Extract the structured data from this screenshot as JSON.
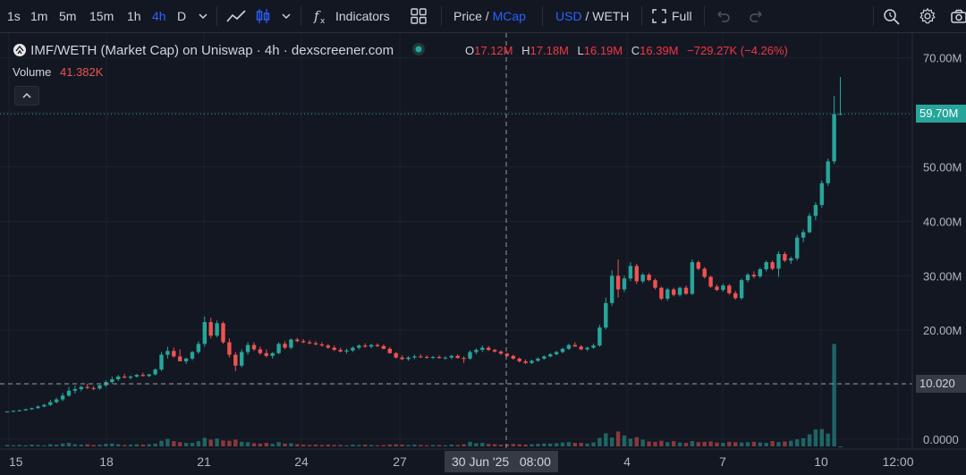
{
  "toolbar": {
    "intervals": [
      "1s",
      "1m",
      "5m",
      "15m",
      "1h",
      "4h",
      "D"
    ],
    "active_interval": "4h",
    "indicators_label": "Indicators",
    "price_label": "Price",
    "slash": " / ",
    "mcap_label": "MCap",
    "usd_label": "USD",
    "weth_label": "WETH",
    "full_label": "Full"
  },
  "legend": {
    "title": "IMF/WETH (Market Cap) on Uniswap · 4h · dexscreener.com",
    "o_key": "O",
    "o_val": "17.12M",
    "h_key": "H",
    "h_val": "17.18M",
    "l_key": "L",
    "l_val": "16.19M",
    "c_key": "C",
    "c_val": "16.39M",
    "change": "−729.27K (−4.26%)",
    "volume_label": "Volume",
    "volume_val": "41.382K"
  },
  "axis": {
    "y_ticks": [
      "70.00M",
      "60.00M",
      "50.00M",
      "40.00M",
      "30.00M",
      "20.00M",
      "10.00M",
      "0.0000"
    ],
    "x_ticks": [
      "15",
      "18",
      "21",
      "24",
      "27",
      "4",
      "7",
      "10",
      "12:00"
    ],
    "price_tag": "59.70M",
    "crosshair_y_tag": "10.020",
    "crosshair_x_tag": "30 Jun '25   08:00"
  },
  "colors": {
    "up": "#26a69a",
    "down": "#ef5350",
    "accent": "#2962ff",
    "background": "#131722"
  },
  "chart_data": {
    "type": "candlestick",
    "ylim": [
      0,
      70000000
    ],
    "candles": [
      [
        5,
        5.1,
        4.9,
        5.1
      ],
      [
        5.1,
        5.3,
        5,
        5.2
      ],
      [
        5.2,
        5.4,
        5.1,
        5.3
      ],
      [
        5.3,
        5.6,
        5.2,
        5.5
      ],
      [
        5.5,
        5.8,
        5.4,
        5.7
      ],
      [
        5.7,
        6.2,
        5.6,
        6
      ],
      [
        6,
        6.5,
        5.9,
        6.3
      ],
      [
        6.3,
        7.2,
        6.1,
        6.8
      ],
      [
        6.8,
        7.6,
        6.6,
        7.3
      ],
      [
        7.3,
        8.5,
        7,
        8
      ],
      [
        8,
        9.6,
        7.8,
        8.9
      ],
      [
        8.9,
        9.8,
        8.4,
        9.2
      ],
      [
        9.2,
        9.8,
        8.8,
        9.6
      ],
      [
        9.6,
        10.2,
        9.2,
        9.4
      ],
      [
        9.4,
        9.7,
        9,
        9.3
      ],
      [
        9.3,
        10,
        9.1,
        9.9
      ],
      [
        9.9,
        10.8,
        9.6,
        10.5
      ],
      [
        10.5,
        11.5,
        10.2,
        11
      ],
      [
        11,
        11.8,
        10.7,
        11.5
      ],
      [
        11.5,
        12,
        11.2,
        11.3
      ],
      [
        11.3,
        11.7,
        11,
        11.5
      ],
      [
        11.5,
        12,
        11.3,
        11.8
      ],
      [
        11.8,
        12.2,
        11.5,
        11.6
      ],
      [
        11.6,
        12,
        11.4,
        11.9
      ],
      [
        11.9,
        13,
        11.7,
        12.8
      ],
      [
        12.8,
        16,
        12.5,
        15.5
      ],
      [
        15.5,
        17,
        14.8,
        16.2
      ],
      [
        16.2,
        16.8,
        15,
        15.2
      ],
      [
        15.2,
        16.5,
        14.5,
        14.3
      ],
      [
        14.3,
        15,
        13.8,
        14.8
      ],
      [
        14.8,
        16.2,
        14.5,
        16
      ],
      [
        16,
        18,
        15.7,
        17.5
      ],
      [
        17.5,
        22.5,
        17,
        21.5
      ],
      [
        21.5,
        22.3,
        18.5,
        19
      ],
      [
        19,
        21.8,
        18.7,
        21.3
      ],
      [
        21.3,
        21.6,
        17.5,
        17.8
      ],
      [
        17.8,
        18.5,
        15,
        15.5
      ],
      [
        15.5,
        16,
        12.5,
        13.5
      ],
      [
        13.5,
        16.5,
        13.2,
        16
      ],
      [
        16,
        17.8,
        15.5,
        17.3
      ],
      [
        17.3,
        17.8,
        16.2,
        16.5
      ],
      [
        16.5,
        17,
        15.5,
        15.8
      ],
      [
        15.8,
        16.5,
        15,
        15.3
      ],
      [
        15.3,
        16,
        14.8,
        15.8
      ],
      [
        15.8,
        17.8,
        15.6,
        17.5
      ],
      [
        17.5,
        18,
        16.5,
        16.8
      ],
      [
        16.8,
        18.5,
        16.5,
        18.3
      ],
      [
        18.3,
        18.6,
        17.8,
        18
      ],
      [
        18,
        18.4,
        17.6,
        17.8
      ],
      [
        17.8,
        18.2,
        17.4,
        17.6
      ],
      [
        17.6,
        18,
        17.2,
        17.4
      ],
      [
        17.4,
        17.8,
        17,
        17.2
      ],
      [
        17.2,
        17.5,
        16.6,
        16.8
      ],
      [
        16.8,
        17.2,
        16.2,
        16.4
      ],
      [
        16.4,
        16.8,
        15.9,
        16.1
      ],
      [
        16.1,
        16.6,
        15.7,
        16.3
      ],
      [
        16.3,
        17,
        16,
        16.8
      ],
      [
        16.8,
        17.4,
        16.5,
        17.2
      ],
      [
        17.2,
        17.6,
        16.8,
        17
      ],
      [
        17,
        17.5,
        16.7,
        17.3
      ],
      [
        17.3,
        17.6,
        16.9,
        17.1
      ],
      [
        17.1,
        17.4,
        16.5,
        16.6
      ],
      [
        16.6,
        16.9,
        15.7,
        15.8
      ],
      [
        15.8,
        16,
        14.8,
        15
      ],
      [
        15,
        15.4,
        14.5,
        14.7
      ],
      [
        14.7,
        15.2,
        14.4,
        15
      ],
      [
        15,
        15.5,
        14.7,
        15.2
      ],
      [
        15.2,
        15.6,
        14.9,
        15.1
      ],
      [
        15.1,
        15.4,
        14.8,
        15
      ],
      [
        15,
        15.3,
        14.7,
        15.1
      ],
      [
        15.1,
        15.4,
        14.8,
        14.9
      ],
      [
        14.9,
        15.2,
        14.6,
        15
      ],
      [
        15,
        15.5,
        14.7,
        15.3
      ],
      [
        15.3,
        15.6,
        14.8,
        14.9
      ],
      [
        14.9,
        15.2,
        14,
        14.8
      ],
      [
        14.8,
        16.3,
        14.6,
        16
      ],
      [
        16,
        16.7,
        15.6,
        16.4
      ],
      [
        16.4,
        17.2,
        16,
        16.8
      ],
      [
        16.8,
        17.1,
        16.2,
        16.4
      ],
      [
        16.4,
        16.6,
        15.9,
        16.1
      ],
      [
        16.1,
        16.3,
        15.5,
        15.7
      ],
      [
        15.7,
        15.9,
        15.1,
        15.3
      ],
      [
        15.3,
        15.5,
        14.6,
        14.8
      ],
      [
        14.8,
        15,
        14.1,
        14.3
      ],
      [
        14.3,
        14.6,
        13.8,
        14
      ],
      [
        14,
        14.6,
        13.8,
        14.4
      ],
      [
        14.4,
        15,
        14.2,
        14.8
      ],
      [
        14.8,
        15.4,
        14.6,
        15.2
      ],
      [
        15.2,
        15.8,
        15,
        15.6
      ],
      [
        15.6,
        16.2,
        15.4,
        16
      ],
      [
        16,
        16.8,
        15.8,
        16.6
      ],
      [
        16.6,
        17.5,
        16.4,
        17.3
      ],
      [
        17.3,
        17.8,
        17,
        17
      ],
      [
        17,
        17.3,
        16.3,
        16.5
      ],
      [
        16.5,
        17,
        16.2,
        16.8
      ],
      [
        16.8,
        17.5,
        16.6,
        17.2
      ],
      [
        17.2,
        21,
        17,
        20.5
      ],
      [
        20.5,
        26,
        20.2,
        25
      ],
      [
        25,
        31,
        24.5,
        30
      ],
      [
        30,
        33,
        26,
        27.5
      ],
      [
        27.5,
        30,
        27,
        29.5
      ],
      [
        29.5,
        32.5,
        29,
        31.8
      ],
      [
        31.8,
        32.2,
        28.5,
        29
      ],
      [
        29,
        30.5,
        28.6,
        30.2
      ],
      [
        30.2,
        30.5,
        29,
        29.2
      ],
      [
        29.2,
        29.5,
        27.5,
        27.8
      ],
      [
        27.8,
        28,
        25.5,
        25.8
      ],
      [
        25.8,
        27.8,
        25.4,
        27.5
      ],
      [
        27.5,
        27.8,
        26.2,
        26.5
      ],
      [
        26.5,
        28,
        26.2,
        27.8
      ],
      [
        27.8,
        28.2,
        26.5,
        26.7
      ],
      [
        26.7,
        33,
        26.5,
        32.5
      ],
      [
        32.5,
        32.8,
        31,
        31.3
      ],
      [
        31.3,
        31.6,
        29.5,
        29.8
      ],
      [
        29.8,
        30,
        27.8,
        28
      ],
      [
        28,
        28.4,
        27.2,
        27.4
      ],
      [
        27.4,
        28.5,
        27.1,
        28.2
      ],
      [
        28.2,
        28.5,
        26.5,
        26.8
      ],
      [
        26.8,
        27.2,
        25.6,
        25.9
      ],
      [
        25.9,
        29.5,
        25.6,
        29.2
      ],
      [
        29.2,
        30.5,
        28.8,
        30.2
      ],
      [
        30.2,
        30.8,
        29.5,
        29.9
      ],
      [
        29.9,
        31.5,
        29.6,
        31.2
      ],
      [
        31.2,
        32.8,
        30.8,
        32.5
      ],
      [
        32.5,
        32.8,
        31,
        31.3
      ],
      [
        31.3,
        34.5,
        29.8,
        34
      ],
      [
        34,
        34.4,
        32.5,
        32.8
      ],
      [
        32.8,
        33.5,
        32.2,
        33.2
      ],
      [
        33.2,
        37.5,
        32.8,
        37
      ],
      [
        37,
        38.5,
        36.2,
        38
      ],
      [
        38,
        41.5,
        37.8,
        41
      ],
      [
        41,
        43.5,
        40.2,
        43
      ],
      [
        43,
        47.5,
        42.5,
        47
      ],
      [
        47,
        51.5,
        46.5,
        51
      ],
      [
        51,
        63,
        50.5,
        59.7
      ],
      [
        59.7,
        66.5,
        59.5,
        59.7
      ]
    ],
    "volume": [
      0.4,
      0.3,
      0.4,
      0.3,
      0.5,
      0.4,
      0.3,
      0.6,
      0.5,
      0.8,
      1,
      0.6,
      0.5,
      0.6,
      0.4,
      0.5,
      0.7,
      0.8,
      0.6,
      0.4,
      0.5,
      0.6,
      0.5,
      0.6,
      0.8,
      1.6,
      2.1,
      1.5,
      1.2,
      1,
      1,
      1.5,
      2.4,
      1.9,
      2.2,
      1.7,
      1.6,
      1.9,
      1.3,
      1.2,
      0.9,
      0.8,
      1,
      0.7,
      1.2,
      0.8,
      0.9,
      0.6,
      0.5,
      0.4,
      0.5,
      0.4,
      0.5,
      0.4,
      0.4,
      0.3,
      0.5,
      0.4,
      0.5,
      0.4,
      0.3,
      0.4,
      0.5,
      0.6,
      0.5,
      0.4,
      0.5,
      0.4,
      0.3,
      0.4,
      0.4,
      0.3,
      0.5,
      0.4,
      0.6,
      1.3,
      0.9,
      1,
      0.7,
      0.6,
      0.5,
      0.6,
      0.7,
      0.6,
      0.5,
      0.6,
      0.7,
      0.8,
      0.8,
      0.9,
      1.1,
      1.2,
      1,
      1,
      0.8,
      1.1,
      2.4,
      3.7,
      2.5,
      4.2,
      3.1,
      2.2,
      2.6,
      1.9,
      1.4,
      1.3,
      1.6,
      1.2,
      1.5,
      1.1,
      1,
      1.5,
      1.2,
      1.3,
      1.4,
      1.1,
      1,
      1.3,
      1.2,
      1.1,
      1.2,
      1.3,
      1.1,
      1,
      1.5,
      1.2,
      1.4,
      1.6,
      2,
      2.3,
      3.4,
      4.8,
      4.9,
      3.6,
      29
    ],
    "x_tick_labels": [
      "15",
      "18",
      "21",
      "24",
      "27",
      "4",
      "7",
      "10",
      "12:00"
    ],
    "y_tick_labels": [
      "70.00M",
      "60.00M",
      "50.00M",
      "40.00M",
      "30.00M",
      "20.00M",
      "10.00M",
      "0.0000"
    ]
  }
}
